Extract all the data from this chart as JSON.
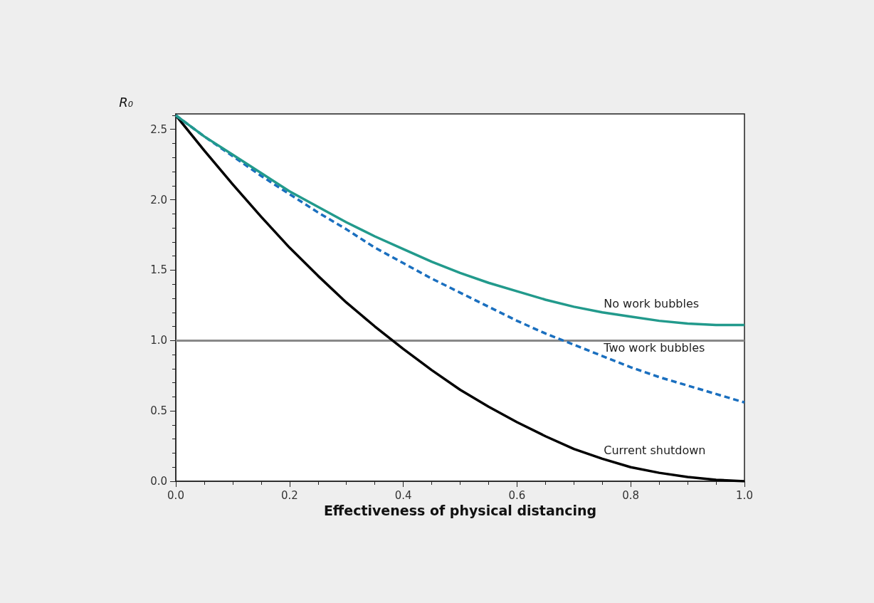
{
  "chart_data": {
    "type": "line",
    "xlabel": "Effectiveness of physical distancing",
    "ylabel": "R₀",
    "x": [
      0,
      0.05,
      0.1,
      0.15,
      0.2,
      0.25,
      0.3,
      0.35,
      0.4,
      0.45,
      0.5,
      0.55,
      0.6,
      0.65,
      0.7,
      0.75,
      0.8,
      0.85,
      0.9,
      0.95,
      1
    ],
    "series": [
      {
        "name": "No work bubbles",
        "color": "#229a8c",
        "line_style": "solid",
        "values": [
          2.6,
          2.45,
          2.32,
          2.19,
          2.06,
          1.95,
          1.84,
          1.74,
          1.65,
          1.56,
          1.48,
          1.41,
          1.35,
          1.29,
          1.24,
          1.2,
          1.17,
          1.14,
          1.12,
          1.11,
          1.11
        ]
      },
      {
        "name": "Two work bubbles",
        "color": "#1a6fbf",
        "line_style": "dashed",
        "values": [
          2.6,
          2.45,
          2.31,
          2.17,
          2.04,
          1.91,
          1.79,
          1.66,
          1.55,
          1.44,
          1.34,
          1.24,
          1.14,
          1.05,
          0.97,
          0.89,
          0.81,
          0.74,
          0.68,
          0.62,
          0.56
        ]
      },
      {
        "name": "Current shutdown",
        "color": "#000000",
        "line_style": "solid",
        "values": [
          2.6,
          2.35,
          2.11,
          1.88,
          1.66,
          1.46,
          1.27,
          1.1,
          0.94,
          0.79,
          0.65,
          0.53,
          0.42,
          0.32,
          0.23,
          0.16,
          0.1,
          0.06,
          0.03,
          0.01,
          0
        ]
      }
    ],
    "xlim": [
      0,
      1
    ],
    "xticks": [
      {
        "value": 0,
        "label": "0.0"
      },
      0.2,
      0.4,
      0.6,
      0.8,
      {
        "value": 1,
        "label": "1.0"
      }
    ],
    "ylim": [
      0,
      2.61
    ],
    "yticks": [
      {
        "value": 0,
        "label": "0.0"
      },
      0.5,
      {
        "value": 1,
        "label": "1.0"
      },
      1.5,
      {
        "value": 2,
        "label": "2.0"
      },
      2.5
    ],
    "ref_lines": [
      {
        "axis": "y",
        "value": 1,
        "color": "#888888"
      }
    ],
    "grid": false,
    "legend": false,
    "marker": "none"
  }
}
